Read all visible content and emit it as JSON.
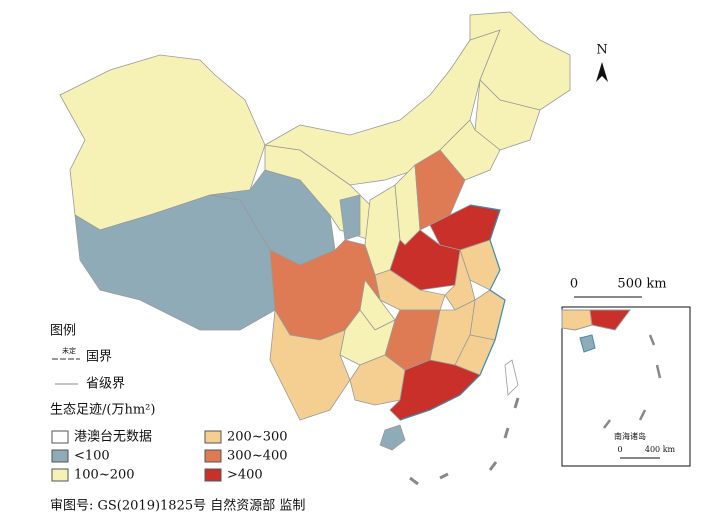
{
  "legend": {
    "title": "图例",
    "boundary_items": [
      {
        "tag": "未定",
        "label": "国界"
      },
      {
        "label": "省级界"
      }
    ],
    "value_title": "生态足迹/(万hm²)",
    "classes": [
      {
        "label": "港澳台无数据",
        "color": "#ffffff"
      },
      {
        "label": "<100",
        "color": "#8fabb8"
      },
      {
        "label": "100~200",
        "color": "#f6f2b6"
      },
      {
        "label": "200~300",
        "color": "#f5cf91"
      },
      {
        "label": "300~400",
        "color": "#de7b55"
      },
      {
        "label": ">400",
        "color": "#c9302a"
      }
    ]
  },
  "north": "N",
  "scale": {
    "zero": "0",
    "label": "500 km"
  },
  "inset": {
    "title": "南海诸岛",
    "zero": "0",
    "label": "400 km"
  },
  "footer": "审图号: GS(2019)1825号 自然资源部 监制"
}
